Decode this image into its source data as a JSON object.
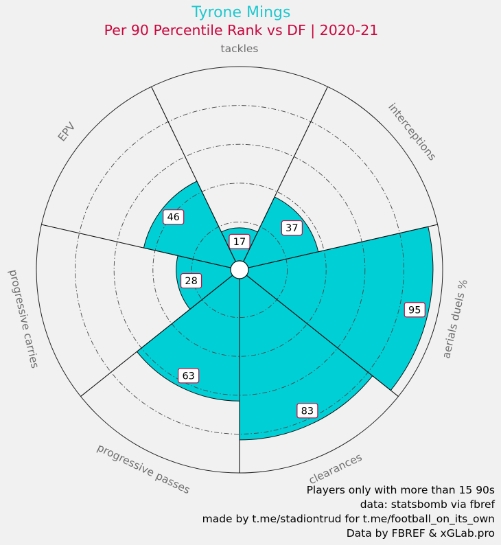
{
  "chart_data": {
    "type": "polar-bar",
    "title": "Tyrone Mings",
    "subtitle": "Per 90 Percentile Rank vs DF | 2020-21",
    "categories": [
      "tackles",
      "interceptions",
      "aerials duels %",
      "clearances",
      "progressive passes",
      "progressive carries",
      "EPV"
    ],
    "values": [
      17,
      37,
      95,
      83,
      63,
      28,
      46
    ],
    "rlim": [
      0,
      100
    ],
    "grid_rings": [
      20,
      40,
      60,
      80
    ],
    "colors": {
      "bar": "#00cfd6",
      "title": "#1ec8cf",
      "subtitle": "#c8083f",
      "label_border": "#c8083f",
      "axis_label": "#6e6e6e",
      "background": "#f1f1f1"
    }
  },
  "footer": {
    "line1": "Players only with more than 15 90s",
    "line2": "data: statsbomb via fbref",
    "line3": "made by t.me/stadiontrud for t.me/football_on_its_own",
    "line4": "Data by FBREF & xGLab.pro"
  }
}
